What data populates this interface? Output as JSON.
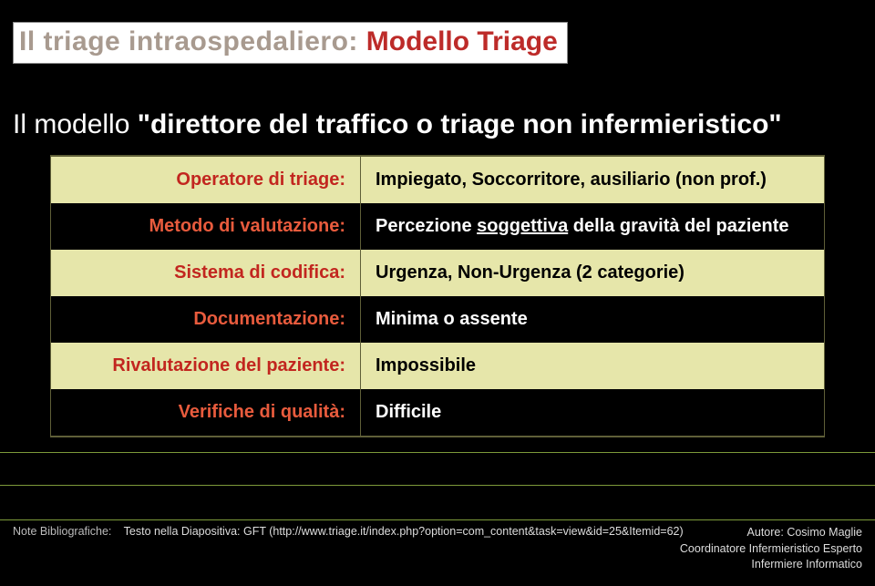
{
  "title": {
    "left": "Il triage intraospedaliero: ",
    "right": "Modello Triage"
  },
  "intro": {
    "pre": "Il modello ",
    "bold": "\"direttore del traffico o triage non infermieristico\""
  },
  "rows": [
    {
      "left": "Operatore di triage:",
      "right": "Impiegato, Soccorritore, ausiliario (non prof.)"
    },
    {
      "left": "Metodo di valutazione:",
      "right_pre": "Percezione ",
      "right_u": "soggettiva",
      "right_post": " della gravità del paziente"
    },
    {
      "left": "Sistema di codifica:",
      "right": "Urgenza, Non-Urgenza (2 categorie)"
    },
    {
      "left": "Documentazione:",
      "right": "Minima o assente"
    },
    {
      "left": "Rivalutazione del paziente:",
      "right": "Impossibile"
    },
    {
      "left": "Verifiche di qualità:",
      "right": "Difficile"
    }
  ],
  "footer": {
    "biblio_label": "Note Bibliografiche:",
    "biblio_text": "Testo nella Diapositiva: GFT (http://www.triage.it/index.php?option=com_content&task=view&id=25&Itemid=62)",
    "author": "Autore: Cosimo Maglie",
    "role1": "Coordinatore Infermieristico Esperto",
    "role2": "Infermiere Informatico"
  },
  "colors": {
    "title_left": "#a89a8f",
    "title_right": "#bd2b29",
    "row_light_bg": "#e6e6aa",
    "row_dark_bg": "#000000",
    "left_label_light": "#c2261f",
    "left_label_dark": "#e85b3d",
    "hr": "#7d9a3a"
  }
}
